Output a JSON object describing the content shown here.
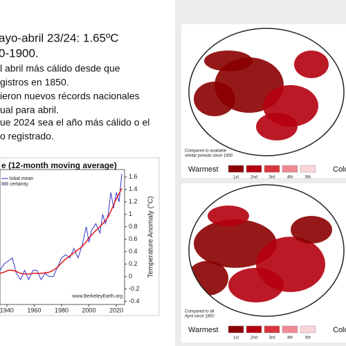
{
  "slide": {
    "lines": [
      "ayo-abril 23/24: 1.65ºC",
      "0-1900.",
      "l abril más cálido desde que",
      "gistros en 1850.",
      "ieron nuevos récords nacionales",
      "ual para abril.",
      "ue 2024 sea el año más cálido o el",
      "o registrado."
    ]
  },
  "chart_data": {
    "type": "line",
    "title": "e (12-month moving average)",
    "legend_notes": [
      "lobal mean",
      "certainty."
    ],
    "y_label": "Temperature Anomaly (°C)",
    "source": "www.BerkeleyEarth.org",
    "x": [
      1935,
      1938,
      1941,
      1944,
      1947,
      1950,
      1953,
      1956,
      1959,
      1962,
      1965,
      1968,
      1971,
      1974,
      1977,
      1980,
      1983,
      1986,
      1989,
      1992,
      1995,
      1998,
      2000,
      2002,
      2005,
      2008,
      2010,
      2012,
      2014,
      2016,
      2018,
      2020,
      2022,
      2024
    ],
    "series": [
      {
        "name": "lobal mean",
        "color": "#3333cc",
        "values": [
          0.1,
          0.2,
          0.25,
          0.3,
          0.05,
          -0.05,
          0.1,
          -0.05,
          0.1,
          0.1,
          -0.05,
          0.05,
          0.0,
          0.0,
          0.15,
          0.3,
          0.35,
          0.3,
          0.45,
          0.3,
          0.5,
          0.8,
          0.55,
          0.75,
          0.85,
          0.7,
          1.0,
          0.85,
          1.0,
          1.35,
          1.1,
          1.35,
          1.2,
          1.65
        ]
      },
      {
        "color": "#dd2222",
        "values": [
          0.05,
          0.07,
          0.1,
          0.1,
          0.08,
          0.05,
          0.04,
          0.04,
          0.05,
          0.05,
          0.05,
          0.06,
          0.07,
          0.1,
          0.15,
          0.22,
          0.28,
          0.33,
          0.38,
          0.43,
          0.48,
          0.56,
          0.62,
          0.67,
          0.74,
          0.8,
          0.85,
          0.9,
          0.96,
          1.05,
          1.15,
          1.25,
          1.33,
          1.42
        ]
      }
    ],
    "xlim": [
      1935,
      2026
    ],
    "xticks": [
      1940,
      1960,
      1980,
      2000,
      2020
    ],
    "ylim": [
      -0.45,
      1.72
    ],
    "yticks": [
      -0.4,
      -0.2,
      0,
      0.2,
      0.4,
      0.6,
      0.8,
      1,
      1.2,
      1.4,
      1.6
    ]
  },
  "maps": [
    {
      "note": [
        "Compared to available",
        "similar periods since 1850"
      ],
      "legend_title": "Warmest",
      "ranks": [
        "1st",
        "2nd",
        "3rd",
        "4th",
        "5th"
      ],
      "cold_label": "Colo"
    },
    {
      "note": [
        "Compared to all",
        "April since 1850"
      ],
      "legend_title": "Warmest",
      "ranks": [
        "1st",
        "2nd",
        "3rd",
        "4th",
        "5th"
      ],
      "cold_label": "Colo"
    }
  ]
}
